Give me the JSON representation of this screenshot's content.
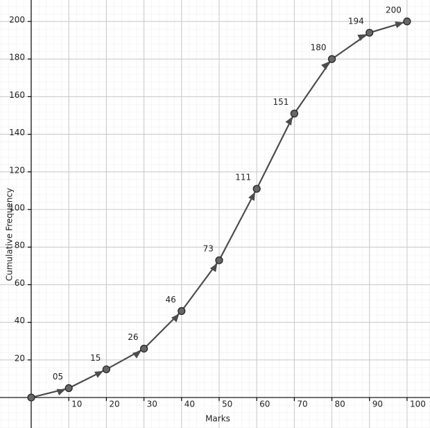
{
  "chart_data": {
    "type": "line",
    "x_label": "Marks",
    "y_label": "Cumulative Frequency",
    "x": [
      0,
      10,
      20,
      30,
      40,
      50,
      60,
      70,
      80,
      90,
      100
    ],
    "series": [
      {
        "color": "#4d4d4d",
        "values": [
          0,
          5,
          15,
          26,
          46,
          73,
          111,
          151,
          180,
          194,
          200
        ],
        "value_labels": [
          null,
          "05",
          "15",
          "26",
          "46",
          "73",
          "111",
          "151",
          "180",
          "194",
          "200"
        ]
      }
    ],
    "xlim": [
      -8.3,
      106.1
    ],
    "ylim": [
      -16.2,
      211.4
    ],
    "xticks": [
      10,
      20,
      30,
      40,
      50,
      60,
      70,
      80,
      90,
      100
    ],
    "yticks": [
      20,
      40,
      60,
      80,
      100,
      120,
      140,
      160,
      180,
      200
    ],
    "grid": true
  }
}
